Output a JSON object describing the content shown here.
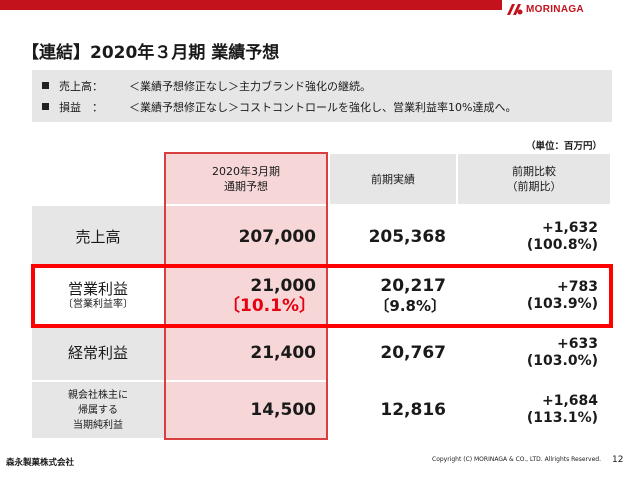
{
  "brand": {
    "name": "MORINAGA",
    "color": "#c3121c"
  },
  "title": "【連結】2020年３月期 業績予想",
  "summary": [
    {
      "label": "売上高：",
      "text": "＜業績予想修正なし＞主力ブランド強化の継続。"
    },
    {
      "label": "損益　：",
      "text": "＜業績予想修正なし＞コストコントロールを強化し、営業利益率10%達成へ。"
    }
  ],
  "unit": "（単位：百万円）",
  "table": {
    "headers": {
      "forecast": [
        "2020年3月期",
        "通期予想"
      ],
      "prior": "前期実績",
      "compare": [
        "前期比較",
        "（前期比）"
      ]
    },
    "rows": [
      {
        "label": [
          "売上高"
        ],
        "forecast": "207,000",
        "prior": "205,368",
        "diff": "+1,632",
        "ratio": "(100.8%)"
      },
      {
        "label": [
          "営業利益",
          "〔営業利益率〕"
        ],
        "forecast": "21,000",
        "forecast_margin": "〔10.1%〕",
        "prior": "20,217",
        "prior_margin": "〔9.8%〕",
        "diff": "+783",
        "ratio": "(103.9%)"
      },
      {
        "label": [
          "経常利益"
        ],
        "forecast": "21,400",
        "prior": "20,767",
        "diff": "+633",
        "ratio": "(103.0%)"
      },
      {
        "label": [
          "親会社株主に",
          "帰属する",
          "当期純利益"
        ],
        "forecast": "14,500",
        "prior": "12,816",
        "diff": "+1,684",
        "ratio": "(113.1%)"
      }
    ]
  },
  "colors": {
    "highlight_red": "#ff0000",
    "margin_red": "#e60012",
    "forecast_column": "#f6d6d6",
    "cell_gray": "#e6e6e6"
  },
  "footer": {
    "company": "森永製菓株式会社",
    "copyright": "Copyright (C) MORINAGA & CO., LTD. Allrights Reserved.",
    "page": "12"
  }
}
